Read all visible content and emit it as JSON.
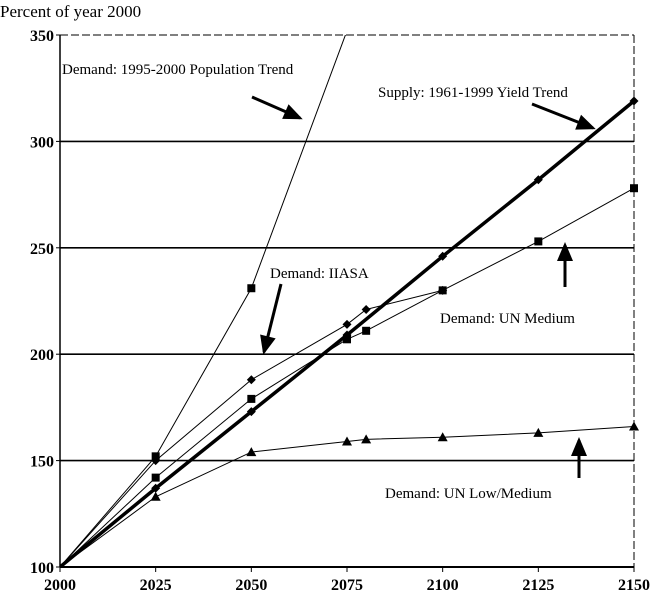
{
  "chart_data": {
    "type": "line",
    "ylabel": "Percent of year 2000",
    "xlim": [
      2000,
      2150
    ],
    "ylim": [
      100,
      350
    ],
    "xticks": [
      "2000",
      "2025",
      "2050",
      "2075",
      "2100",
      "2125",
      "2150"
    ],
    "yticks": [
      "100",
      "150",
      "200",
      "250",
      "300",
      "350"
    ],
    "grid": "horizontal",
    "series": [
      {
        "name": "Demand: 1995-2000 Population Trend",
        "marker": "square",
        "width": 1,
        "x": [
          2000,
          2025,
          2050,
          2075
        ],
        "y": [
          100,
          152,
          231,
          352
        ]
      },
      {
        "name": "Supply: 1961-1999 Yield Trend",
        "marker": "diamond",
        "width": 3.5,
        "x": [
          2000,
          2025,
          2050,
          2075,
          2100,
          2125,
          2150
        ],
        "y": [
          100,
          137,
          173,
          209,
          246,
          282,
          319
        ]
      },
      {
        "name": "Demand: IIASA",
        "marker": "diamond",
        "width": 1,
        "x": [
          2000,
          2025,
          2050,
          2075,
          2080,
          2100
        ],
        "y": [
          100,
          150,
          188,
          214,
          221,
          230
        ]
      },
      {
        "name": "Demand: UN Medium",
        "marker": "square",
        "width": 1,
        "x": [
          2000,
          2025,
          2050,
          2075,
          2080,
          2100,
          2125,
          2150
        ],
        "y": [
          100,
          142,
          179,
          207,
          211,
          230,
          253,
          278
        ]
      },
      {
        "name": "Demand: UN Low/Medium",
        "marker": "triangle",
        "width": 1,
        "x": [
          2000,
          2025,
          2050,
          2075,
          2080,
          2100,
          2125,
          2150
        ],
        "y": [
          100,
          133,
          154,
          159,
          160,
          161,
          163,
          166
        ]
      }
    ],
    "annotations": [
      {
        "text": "Demand: 1995-2000 Population Trend",
        "series": 0
      },
      {
        "text": "Supply: 1961-1999 Yield Trend",
        "series": 1
      },
      {
        "text": "Demand: IIASA",
        "series": 2
      },
      {
        "text": "Demand: UN Medium",
        "series": 3
      },
      {
        "text": "Demand: UN Low/Medium",
        "series": 4
      }
    ]
  }
}
